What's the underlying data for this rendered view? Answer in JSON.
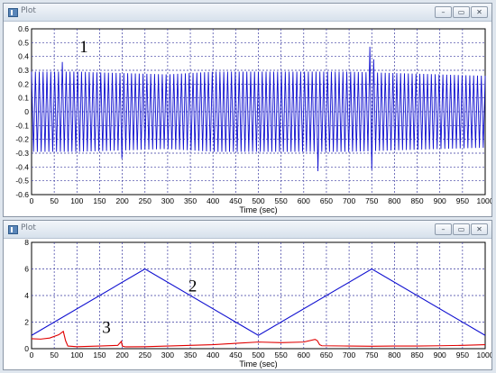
{
  "windows": [
    {
      "title": "Plot",
      "controls": {
        "minimize": "–",
        "maximize": "▭",
        "close": "✕"
      }
    },
    {
      "title": "Plot",
      "controls": {
        "minimize": "–",
        "maximize": "▭",
        "close": "✕"
      }
    }
  ],
  "colors": {
    "blue": "#1010d0",
    "red": "#e00000",
    "grid": "#3a3aa0"
  },
  "chart_data": [
    {
      "type": "line",
      "xlabel": "Time (sec)",
      "ylabel": "",
      "xlim": [
        0,
        1000
      ],
      "ylim": [
        -0.6,
        0.6
      ],
      "x_ticks": [
        "0",
        "50",
        "100",
        "150",
        "200",
        "250",
        "300",
        "350",
        "400",
        "450",
        "500",
        "550",
        "600",
        "650",
        "700",
        "750",
        "800",
        "850",
        "900",
        "950",
        "1000"
      ],
      "y_ticks": [
        "0.6",
        "0.5",
        "0.4",
        "0.3",
        "0.2",
        "0.1",
        "0",
        "-0.1",
        "-0.2",
        "-0.3",
        "-0.4",
        "-0.5",
        "-0.6"
      ],
      "grid": true,
      "annotations": [
        "1"
      ],
      "series": [
        {
          "label_shown": "1",
          "style": "dense oscillation",
          "oscillation_cycles": 118,
          "envelope": [
            [
              0,
              0.29
            ],
            [
              100,
              0.29
            ],
            [
              200,
              0.28
            ],
            [
              300,
              0.27
            ],
            [
              400,
              0.29
            ],
            [
              500,
              0.29
            ],
            [
              600,
              0.29
            ],
            [
              700,
              0.29
            ],
            [
              800,
              0.28
            ],
            [
              900,
              0.27
            ],
            [
              1000,
              0.26
            ]
          ],
          "spikes": [
            [
              64,
              0.36
            ],
            [
              202,
              -0.34
            ],
            [
              633,
              -0.43
            ],
            [
              745,
              0.47
            ],
            [
              748,
              -0.42
            ],
            [
              752,
              0.38
            ]
          ]
        }
      ]
    },
    {
      "type": "line",
      "xlabel": "Time (sec)",
      "ylabel": "",
      "xlim": [
        0,
        1000
      ],
      "ylim": [
        0,
        8
      ],
      "x_ticks": [
        "0",
        "50",
        "100",
        "150",
        "200",
        "250",
        "300",
        "350",
        "400",
        "450",
        "500",
        "550",
        "600",
        "650",
        "700",
        "750",
        "800",
        "850",
        "900",
        "950",
        "1000"
      ],
      "y_ticks": [
        "8",
        "6",
        "4",
        "2",
        "0"
      ],
      "grid": true,
      "annotations": [
        "2",
        "3"
      ],
      "series": [
        {
          "label_shown": "2",
          "x": [
            0,
            250,
            500,
            750,
            1000
          ],
          "y": [
            1.0,
            6.0,
            1.0,
            6.0,
            1.0
          ]
        },
        {
          "label_shown": "3",
          "x": [
            0,
            20,
            40,
            60,
            70,
            75,
            80,
            100,
            150,
            190,
            198,
            200,
            205,
            210,
            250,
            300,
            350,
            400,
            450,
            500,
            550,
            600,
            625,
            630,
            635,
            640,
            700,
            750,
            800,
            850,
            900,
            950,
            1000
          ],
          "y": [
            0.75,
            0.72,
            0.8,
            1.05,
            1.3,
            0.6,
            0.2,
            0.15,
            0.2,
            0.25,
            0.55,
            0.2,
            0.15,
            0.14,
            0.15,
            0.2,
            0.25,
            0.3,
            0.4,
            0.5,
            0.45,
            0.5,
            0.7,
            0.6,
            0.3,
            0.22,
            0.2,
            0.18,
            0.2,
            0.2,
            0.22,
            0.25,
            0.3
          ]
        }
      ]
    }
  ]
}
